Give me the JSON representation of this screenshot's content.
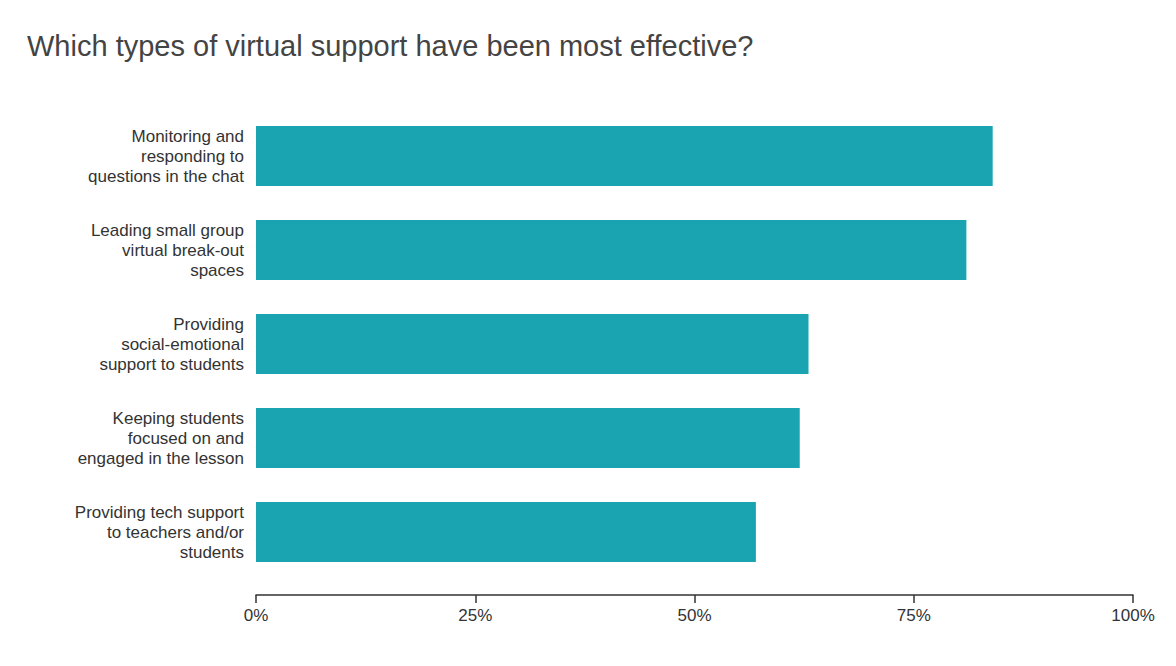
{
  "chart_data": {
    "type": "bar",
    "orientation": "horizontal",
    "title": "Which types of virtual support have been most effective?",
    "categories": [
      "Monitoring and\nresponding to\nquestions in the chat",
      "Leading small group\nvirtual break-out\nspaces",
      "Providing\nsocial-emotional\nsupport to students",
      "Keeping students\nfocused on and\nengaged in the lesson",
      "Providing tech support\nto teachers and/or\nstudents"
    ],
    "values": [
      84,
      81,
      63,
      62,
      57
    ],
    "color": "#1aa4b1",
    "xlim": [
      0,
      100
    ],
    "xticks": [
      {
        "value": 0,
        "label": "0%"
      },
      {
        "value": 25,
        "label": "25%"
      },
      {
        "value": 50,
        "label": "50%"
      },
      {
        "value": 75,
        "label": "75%"
      },
      {
        "value": 100,
        "label": "100%"
      }
    ],
    "grid": false
  }
}
